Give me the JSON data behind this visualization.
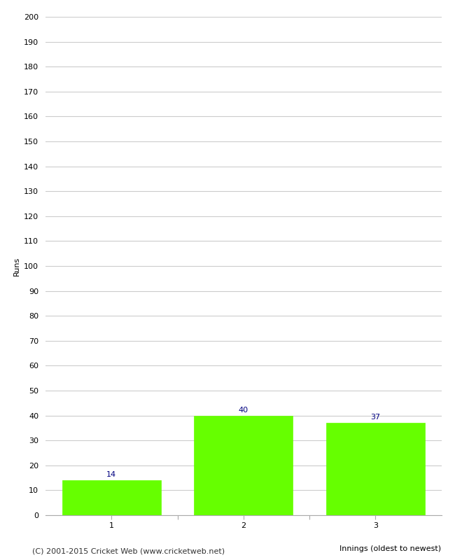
{
  "categories": [
    "1",
    "2",
    "3"
  ],
  "values": [
    14,
    40,
    37
  ],
  "bar_color": "#66ff00",
  "bar_edge_color": "#66ff00",
  "label_color": "#000080",
  "ylabel": "Runs",
  "xlabel": "Innings (oldest to newest)",
  "ylim": [
    0,
    200
  ],
  "ytick_step": 10,
  "background_color": "#ffffff",
  "grid_color": "#cccccc",
  "footer_text": "(C) 2001-2015 Cricket Web (www.cricketweb.net)",
  "label_fontsize": 8,
  "axis_label_fontsize": 8,
  "footer_fontsize": 8,
  "value_label_fontsize": 8
}
